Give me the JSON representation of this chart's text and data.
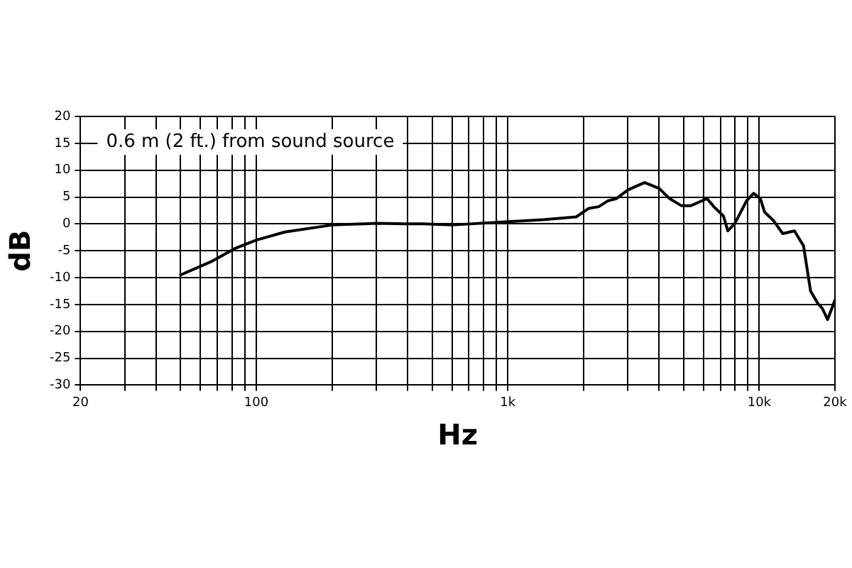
{
  "chart_data": {
    "type": "line",
    "xlabel": "Hz",
    "ylabel": "dB",
    "annotations": [
      "0.6 m (2 ft.) from sound source"
    ],
    "log": "x",
    "grid": true,
    "marker": "none",
    "line_style": "solid",
    "xlim": [
      20,
      20000
    ],
    "ylim": [
      -30,
      20
    ],
    "xticks": [
      {
        "value": 20,
        "label": "20"
      },
      {
        "value": 30,
        "label": null
      },
      {
        "value": 40,
        "label": null
      },
      {
        "value": 50,
        "label": null
      },
      {
        "value": 60,
        "label": null
      },
      {
        "value": 70,
        "label": null
      },
      {
        "value": 80,
        "label": null
      },
      {
        "value": 90,
        "label": null
      },
      {
        "value": 100,
        "label": "100"
      },
      {
        "value": 200,
        "label": null
      },
      {
        "value": 300,
        "label": null
      },
      {
        "value": 400,
        "label": null
      },
      {
        "value": 500,
        "label": null
      },
      {
        "value": 600,
        "label": null
      },
      {
        "value": 700,
        "label": null
      },
      {
        "value": 800,
        "label": null
      },
      {
        "value": 900,
        "label": null
      },
      {
        "value": 1000,
        "label": "1k"
      },
      {
        "value": 2000,
        "label": null
      },
      {
        "value": 3000,
        "label": null
      },
      {
        "value": 4000,
        "label": null
      },
      {
        "value": 5000,
        "label": null
      },
      {
        "value": 6000,
        "label": null
      },
      {
        "value": 7000,
        "label": null
      },
      {
        "value": 8000,
        "label": null
      },
      {
        "value": 9000,
        "label": null
      },
      {
        "value": 10000,
        "label": "10k"
      },
      {
        "value": 20000,
        "label": "20k"
      }
    ],
    "yticks": [
      -30,
      -25,
      -20,
      -15,
      -10,
      -5,
      0,
      5,
      10,
      15,
      20
    ],
    "series": [
      {
        "color": "#000000",
        "x": [
          50,
          67,
          82,
          100,
          130,
          200,
          300,
          390,
          460,
          600,
          1000,
          1400,
          1870,
          2100,
          2300,
          2500,
          2700,
          3000,
          3200,
          3500,
          4000,
          4400,
          4900,
          5350,
          6200,
          6600,
          7200,
          7500,
          8000,
          8900,
          9500,
          10100,
          10500,
          11400,
          12400,
          13800,
          15000,
          16000,
          17100,
          17800,
          18700,
          20000
        ],
        "values": [
          -9.5,
          -6.9,
          -4.6,
          -3.0,
          -1.5,
          -0.2,
          0.1,
          0,
          0,
          -0.2,
          0.4,
          0.8,
          1.3,
          2.9,
          3.2,
          4.3,
          4.7,
          6.3,
          6.9,
          7.7,
          6.6,
          4.7,
          3.4,
          3.4,
          4.7,
          3.2,
          1.5,
          -1.3,
          0.1,
          4.3,
          5.7,
          4.7,
          2.2,
          0.6,
          -1.8,
          -1.3,
          -4.1,
          -12.5,
          -14.8,
          -15.7,
          -17.8,
          -14.2
        ]
      }
    ]
  }
}
